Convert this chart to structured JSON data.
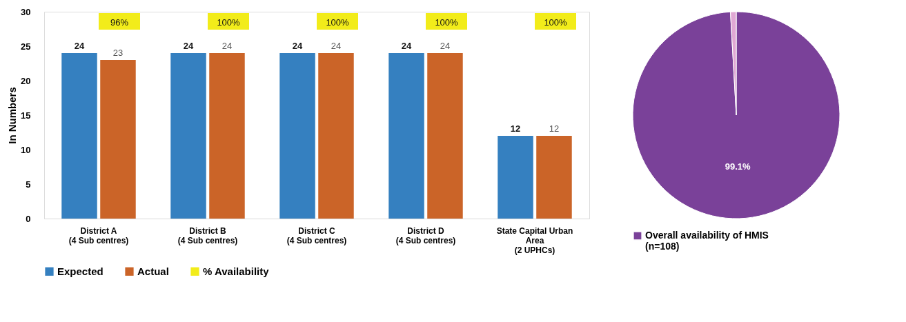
{
  "chart_data": [
    {
      "type": "bar",
      "ylabel": "In Numbers",
      "categories": [
        "District A\n(4 Sub centres)",
        "District B\n(4 Sub centres)",
        "District C\n(4 Sub centres)",
        "District D\n(4 Sub centres)",
        "State Capital Urban\nArea\n(2 UPHCs)"
      ],
      "series": [
        {
          "name": "Expected",
          "color": "#3580c0",
          "values": [
            24,
            24,
            24,
            24,
            12
          ]
        },
        {
          "name": "Actual",
          "color": "#cb6428",
          "values": [
            23,
            24,
            24,
            24,
            12
          ]
        },
        {
          "name": "% Availability",
          "color": "#f2ec1a",
          "values": [
            null,
            null,
            null,
            null,
            null
          ],
          "value_labels": [
            "96%",
            "100%",
            "100%",
            "100%",
            "100%"
          ]
        }
      ],
      "ylim": [
        0,
        30
      ],
      "yticks": [
        0,
        5,
        10,
        15,
        20,
        25,
        30
      ],
      "grid": false,
      "legend": "bottom",
      "data_labels": true
    },
    {
      "type": "pie",
      "categories": [
        "Overall availability of HMIS\n(n=108)",
        null
      ],
      "values": [
        99.1,
        0.9
      ],
      "colors": [
        "#7a4199",
        "#e0a8d4"
      ],
      "value_labels": [
        "99.1%",
        null
      ],
      "legend": "bottom"
    }
  ]
}
